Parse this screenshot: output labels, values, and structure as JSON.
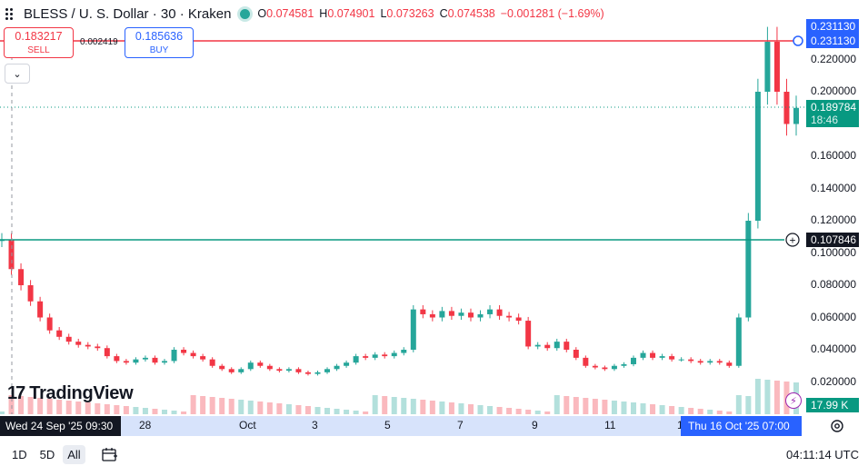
{
  "legend": {
    "symbol_title": "BLESS / U. S. Dollar · 30 · Kraken",
    "open_key": "O",
    "open_val": "0.074581",
    "high_key": "H",
    "high_val": "0.074901",
    "low_key": "L",
    "low_val": "0.073263",
    "close_key": "C",
    "close_val": "0.074538",
    "change": "−0.001281 (−1.69%)"
  },
  "trade": {
    "sell_price": "0.183217",
    "sell_label": "SELL",
    "spread": "0.002419",
    "buy_price": "0.185636",
    "buy_label": "BUY"
  },
  "price_axis": {
    "ticks": [
      "0.220000",
      "0.200000",
      "0.160000",
      "0.140000",
      "0.120000",
      "0.100000",
      "0.080000",
      "0.060000",
      "0.040000",
      "0.020000"
    ],
    "tags": {
      "high_top": "0.231130",
      "high_line": "0.231130",
      "last_price": "0.189784",
      "countdown": "18:46",
      "crosshair": "0.107846",
      "volume": "17.99 K"
    }
  },
  "time_axis": {
    "cursor_left": "Wed 24 Sep '25   09:30",
    "ticks": [
      "28",
      "Oct",
      "3",
      "5",
      "7",
      "9",
      "11",
      "1"
    ],
    "cursor_right": "Thu 16 Oct '25   07:00"
  },
  "bottom": {
    "ranges": [
      "1D",
      "5D",
      "All"
    ],
    "clock": "04:11:14 UTC"
  },
  "logo": {
    "text": "TradingView"
  },
  "colors": {
    "up": "#26a69a",
    "down": "#f23645",
    "accent": "#2962ff",
    "crosshair_line": "#089981",
    "high_line": "#f23645"
  },
  "chart_data": {
    "type": "candlestick",
    "title": "BLESS / U. S. Dollar · 30 · Kraken",
    "ylim": [
      0,
      0.24
    ],
    "x_range": [
      "Wed 24 Sep '25 09:30",
      "Thu 16 Oct '25 07:00"
    ],
    "close_approx": [
      0.108,
      0.09,
      0.08,
      0.07,
      0.06,
      0.052,
      0.048,
      0.045,
      0.043,
      0.042,
      0.041,
      0.036,
      0.033,
      0.032,
      0.034,
      0.035,
      0.032,
      0.033,
      0.04,
      0.038,
      0.036,
      0.034,
      0.03,
      0.028,
      0.026,
      0.028,
      0.032,
      0.03,
      0.028,
      0.027,
      0.028,
      0.026,
      0.025,
      0.026,
      0.028,
      0.03,
      0.032,
      0.036,
      0.035,
      0.037,
      0.036,
      0.038,
      0.04,
      0.065,
      0.062,
      0.06,
      0.064,
      0.061,
      0.063,
      0.06,
      0.062,
      0.065,
      0.061,
      0.06,
      0.058,
      0.042,
      0.043,
      0.041,
      0.045,
      0.04,
      0.035,
      0.03,
      0.029,
      0.028,
      0.03,
      0.031,
      0.035,
      0.038,
      0.035,
      0.036,
      0.034,
      0.034,
      0.033,
      0.032,
      0.033,
      0.032,
      0.03,
      0.06,
      0.12,
      0.2,
      0.231,
      0.2,
      0.18,
      0.19
    ]
  }
}
